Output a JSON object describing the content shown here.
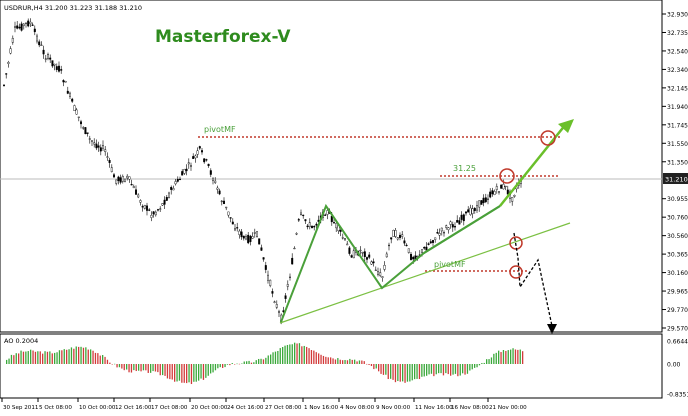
{
  "header": {
    "symbol_info": "USDRUR,H4  31.200 31.223 31.188 31.210",
    "brand": "Masterforex-V"
  },
  "colors": {
    "brand": "#2e8b1e",
    "arrow": "#6abf2a",
    "pivot": "#c0392b",
    "zigzag": "#4aa03a",
    "trendline": "#7bc043",
    "price_tag": "#222222"
  },
  "price_axis": {
    "labels": [
      "32.930",
      "32.735",
      "32.540",
      "32.340",
      "32.145",
      "31.940",
      "31.745",
      "31.550",
      "31.350",
      "31.210",
      "30.955",
      "30.760",
      "30.560",
      "30.365",
      "30.160",
      "29.965",
      "29.770",
      "29.570"
    ],
    "current_price": "31.210"
  },
  "time_axis": {
    "labels": [
      "30 Sep 2011",
      "5 Oct 08:00",
      "10 Oct 00:00",
      "12 Oct 16:00",
      "17 Oct 08:00",
      "20 Oct 00:00",
      "24 Oct 16:00",
      "27 Oct 08:00",
      "1 Nov 16:00",
      "4 Nov 08:00",
      "9 Nov 00:00",
      "11 Nov 16:00",
      "16 Nov 08:00",
      "21 Nov 00:00"
    ]
  },
  "annotations": {
    "pivot_upper": "pivotMF",
    "level_3125": "31.25",
    "pivot_lower": "pivotMF"
  },
  "indicator": {
    "label": "AO 0.2004",
    "axis_labels": [
      "0.6644",
      "0.00",
      "-0.8351"
    ]
  }
}
